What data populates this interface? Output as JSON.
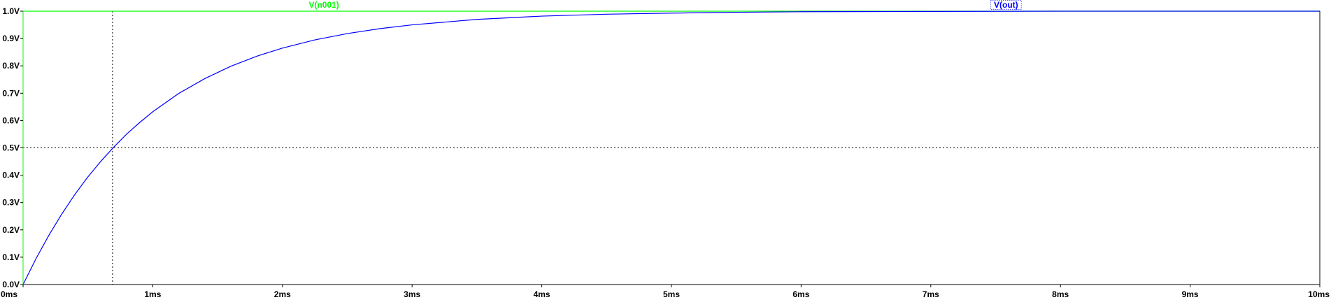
{
  "window": {
    "title": ""
  },
  "chart_data": {
    "type": "line",
    "title": "",
    "xlabel": "",
    "ylabel": "",
    "xlim": [
      0,
      10
    ],
    "ylim": [
      0,
      1.0
    ],
    "x_unit": "ms",
    "y_unit": "V",
    "x_ticks": [
      "0ms",
      "1ms",
      "2ms",
      "3ms",
      "4ms",
      "5ms",
      "6ms",
      "7ms",
      "8ms",
      "9ms",
      "10ms"
    ],
    "y_ticks": [
      "0.0V",
      "0.1V",
      "0.2V",
      "0.3V",
      "0.4V",
      "0.5V",
      "0.6V",
      "0.7V",
      "0.8V",
      "0.9V",
      "1.0V"
    ],
    "grid": false,
    "legend_placement": "top",
    "cursors": {
      "vertical_ms": 0.69,
      "horizontal_v": 0.5
    },
    "series": [
      {
        "name": "V(n001)",
        "color": "#00ff00",
        "x": [
          0,
          10
        ],
        "y": [
          1.0,
          1.0
        ]
      },
      {
        "name": "V(out)",
        "color": "#0000ff",
        "x": [
          0,
          0.1,
          0.2,
          0.3,
          0.4,
          0.5,
          0.6,
          0.7,
          0.8,
          0.9,
          1.0,
          1.2,
          1.4,
          1.6,
          1.8,
          2.0,
          2.25,
          2.5,
          2.75,
          3.0,
          3.5,
          4.0,
          4.5,
          5.0,
          5.5,
          6.0,
          7.0,
          8.0,
          9.0,
          10.0
        ],
        "y": [
          0.0,
          0.095,
          0.181,
          0.259,
          0.33,
          0.394,
          0.451,
          0.503,
          0.551,
          0.593,
          0.632,
          0.699,
          0.753,
          0.798,
          0.835,
          0.865,
          0.895,
          0.918,
          0.936,
          0.95,
          0.97,
          0.982,
          0.989,
          0.993,
          0.996,
          0.998,
          0.999,
          1.0,
          1.0,
          1.0
        ]
      }
    ]
  }
}
